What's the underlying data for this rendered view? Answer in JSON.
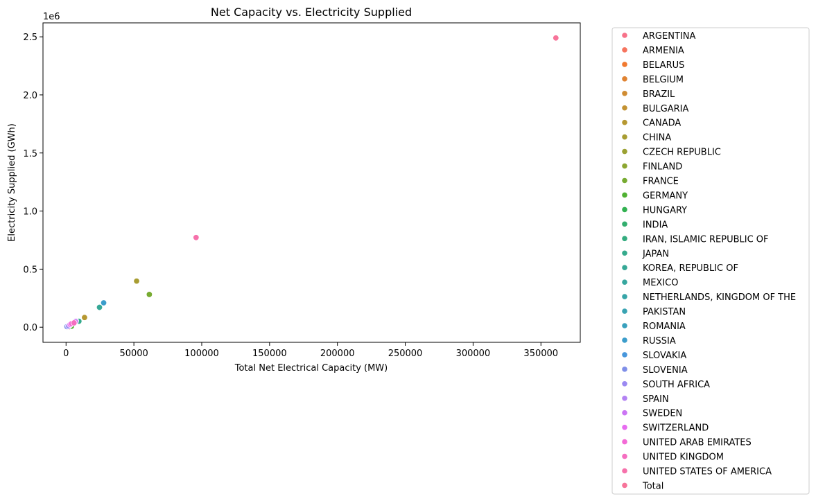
{
  "chart_data": {
    "type": "scatter",
    "title": "Net Capacity vs. Electricity Supplied",
    "xlabel": "Total Net Electrical Capacity (MW)",
    "ylabel": "Electricity Supplied (GWh)",
    "y_offset_text": "1e6",
    "xlim": [
      -17000,
      379000
    ],
    "ylim": [
      -130000,
      2620000
    ],
    "x_ticks": [
      0,
      50000,
      100000,
      150000,
      200000,
      250000,
      300000,
      350000
    ],
    "x_tick_labels": [
      "0",
      "50000",
      "100000",
      "150000",
      "200000",
      "250000",
      "300000",
      "350000"
    ],
    "y_ticks": [
      0,
      500000,
      1000000,
      1500000,
      2000000,
      2500000
    ],
    "y_tick_labels": [
      "0.0",
      "0.5",
      "1.0",
      "1.5",
      "2.0",
      "2.5"
    ],
    "grid": false,
    "legend_position": "outside-right",
    "series": [
      {
        "name": "ARGENTINA",
        "color": "#f77189",
        "points": [
          [
            1641,
            8700
          ]
        ]
      },
      {
        "name": "ARMENIA",
        "color": "#f6745e",
        "points": [
          [
            416,
            2400
          ]
        ]
      },
      {
        "name": "BELARUS",
        "color": "#f1792f",
        "points": [
          [
            2220,
            4500
          ]
        ]
      },
      {
        "name": "BELGIUM",
        "color": "#e08332",
        "points": [
          [
            5942,
            41700
          ]
        ]
      },
      {
        "name": "BRAZIL",
        "color": "#d08c32",
        "points": [
          [
            1884,
            14000
          ]
        ]
      },
      {
        "name": "BULGARIA",
        "color": "#c39232",
        "points": [
          [
            2006,
            16500
          ]
        ]
      },
      {
        "name": "CANADA",
        "color": "#b69831",
        "points": [
          [
            13624,
            83500
          ]
        ]
      },
      {
        "name": "CHINA",
        "color": "#a89d32",
        "points": [
          [
            52000,
            397000
          ]
        ]
      },
      {
        "name": "CZECH REPUBLIC",
        "color": "#9ba132",
        "points": [
          [
            4212,
            29300
          ]
        ]
      },
      {
        "name": "FINLAND",
        "color": "#8ca631",
        "points": [
          [
            4394,
            24000
          ]
        ]
      },
      {
        "name": "FRANCE",
        "color": "#77ab31",
        "points": [
          [
            61370,
            282000
          ]
        ]
      },
      {
        "name": "GERMANY",
        "color": "#50b132",
        "points": [
          [
            4055,
            8700
          ]
        ]
      },
      {
        "name": "HUNGARY",
        "color": "#32b151",
        "points": [
          [
            1916,
            15100
          ]
        ]
      },
      {
        "name": "INDIA",
        "color": "#33ae6e",
        "points": [
          [
            6290,
            44600
          ]
        ]
      },
      {
        "name": "IRAN, ISLAMIC REPUBLIC OF",
        "color": "#34ac7f",
        "points": [
          [
            915,
            6000
          ]
        ]
      },
      {
        "name": "JAPAN",
        "color": "#35aa8c",
        "points": [
          [
            9486,
            51000
          ]
        ]
      },
      {
        "name": "KOREA, REPUBLIC OF",
        "color": "#36a896",
        "points": [
          [
            24650,
            171000
          ]
        ]
      },
      {
        "name": "MEXICO",
        "color": "#36a79f",
        "points": [
          [
            1552,
            10500
          ]
        ]
      },
      {
        "name": "NETHERLANDS, KINGDOM OF THE",
        "color": "#37a5a8",
        "points": [
          [
            482,
            3600
          ]
        ]
      },
      {
        "name": "PAKISTAN",
        "color": "#38a3b2",
        "points": [
          [
            3262,
            22200
          ]
        ]
      },
      {
        "name": "ROMANIA",
        "color": "#39a0bd",
        "points": [
          [
            1300,
            10900
          ]
        ]
      },
      {
        "name": "RUSSIA",
        "color": "#3b9dcb",
        "points": [
          [
            27727,
            210000
          ]
        ]
      },
      {
        "name": "SLOVAKIA",
        "color": "#4897dc",
        "points": [
          [
            2308,
            17900
          ]
        ]
      },
      {
        "name": "SLOVENIA",
        "color": "#7f8fe8",
        "points": [
          [
            696,
            5300
          ]
        ]
      },
      {
        "name": "SOUTH AFRICA",
        "color": "#9b89f2",
        "points": [
          [
            1854,
            10100
          ]
        ]
      },
      {
        "name": "SPAIN",
        "color": "#b382f3",
        "points": [
          [
            7123,
            54400
          ]
        ]
      },
      {
        "name": "SWEDEN",
        "color": "#cb75f4",
        "points": [
          [
            6944,
            48900
          ]
        ]
      },
      {
        "name": "SWITZERLAND",
        "color": "#e76cf0",
        "points": [
          [
            2973,
            23400
          ]
        ]
      },
      {
        "name": "UNITED ARAB EMIRATES",
        "color": "#f36ad6",
        "points": [
          [
            4011,
            30400
          ]
        ]
      },
      {
        "name": "UNITED KINGDOM",
        "color": "#f56ec0",
        "points": [
          [
            5883,
            37300
          ]
        ]
      },
      {
        "name": "UNITED STATES OF AMERICA",
        "color": "#f671ab",
        "points": [
          [
            95835,
            772000
          ]
        ]
      },
      {
        "name": "Total",
        "color": "#f7749a",
        "points": [
          [
            361000,
            2490000
          ]
        ]
      }
    ]
  }
}
